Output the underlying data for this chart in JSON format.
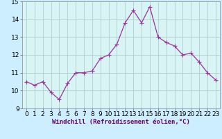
{
  "x": [
    0,
    1,
    2,
    3,
    4,
    5,
    6,
    7,
    8,
    9,
    10,
    11,
    12,
    13,
    14,
    15,
    16,
    17,
    18,
    19,
    20,
    21,
    22,
    23
  ],
  "y": [
    10.5,
    10.3,
    10.5,
    9.9,
    9.5,
    10.4,
    11.0,
    11.0,
    11.1,
    11.8,
    12.0,
    12.6,
    13.8,
    14.5,
    13.8,
    14.7,
    13.0,
    12.7,
    12.5,
    12.0,
    12.1,
    11.6,
    11.0,
    10.6
  ],
  "line_color": "#993399",
  "marker": "+",
  "marker_size": 4,
  "line_width": 0.9,
  "background_color": "#cceeff",
  "plot_bg_color": "#d8f4f4",
  "grid_color": "#b0cece",
  "xlabel": "Windchill (Refroidissement éolien,°C)",
  "xlabel_fontsize": 6.5,
  "tick_fontsize": 6.5,
  "ylim": [
    9,
    15
  ],
  "xlim": [
    -0.5,
    23.5
  ],
  "yticks": [
    9,
    10,
    11,
    12,
    13,
    14,
    15
  ],
  "xticks": [
    0,
    1,
    2,
    3,
    4,
    5,
    6,
    7,
    8,
    9,
    10,
    11,
    12,
    13,
    14,
    15,
    16,
    17,
    18,
    19,
    20,
    21,
    22,
    23
  ]
}
